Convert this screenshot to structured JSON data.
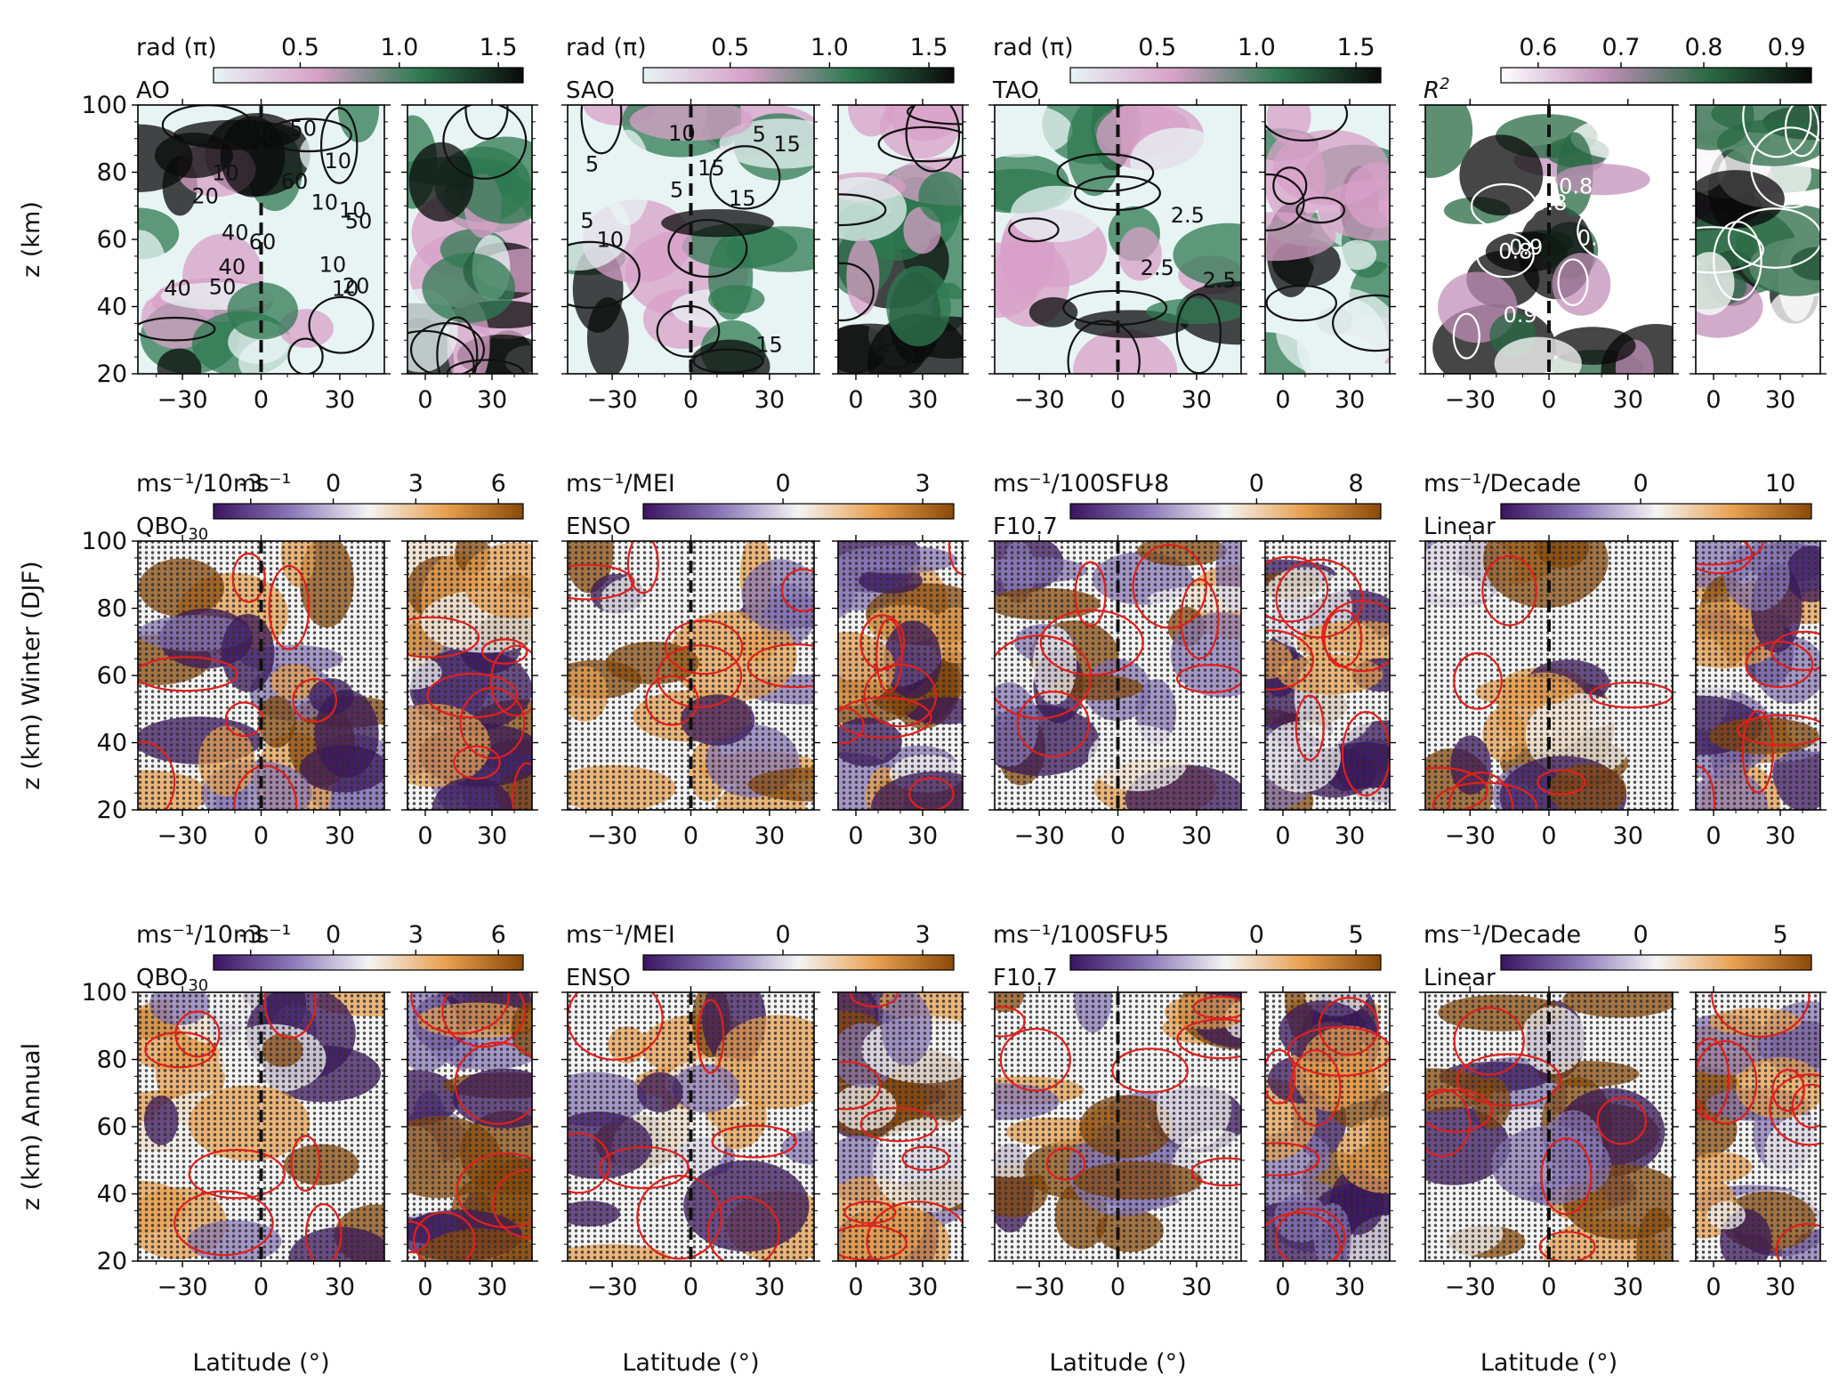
{
  "figure": {
    "y_axis_label_rows": [
      "z (km)",
      "z (km) Winter (DJF)",
      "z (km) Annual"
    ],
    "x_axis_label": "Latitude (°)"
  },
  "chart_data": {
    "type": "heatmap",
    "y_range": [
      20,
      100
    ],
    "y_ticks": [
      20,
      40,
      60,
      80,
      100
    ],
    "x_ticks_main": [
      -30,
      0,
      30
    ],
    "x_ticks_inset": [
      0,
      30
    ],
    "rows": [
      {
        "name": "phase_and_r2",
        "panels": [
          {
            "label": "AO",
            "units": "rad (π)",
            "cbar_ticks": [
              "0.5",
              "1.0",
              "1.5"
            ],
            "cmap": "phase",
            "contour_labels": [
              "10",
              "10",
              "60",
              "50",
              "40",
              "20",
              "40",
              "50",
              "10",
              "10",
              "20",
              "10",
              "10",
              "50",
              "40",
              "60"
            ]
          },
          {
            "label": "SAO",
            "units": "rad (π)",
            "cbar_ticks": [
              "0.5",
              "1.0",
              "1.5"
            ],
            "cmap": "phase",
            "contour_labels": [
              "5",
              "10",
              "15",
              "15",
              "5",
              "15",
              "10",
              "15",
              "5",
              "5"
            ]
          },
          {
            "label": "TAO",
            "units": "rad (π)",
            "cbar_ticks": [
              "0.5",
              "1.0",
              "1.5"
            ],
            "cmap": "phase",
            "contour_labels": [
              "2.5",
              "2.5",
              "2.5"
            ]
          },
          {
            "label": "R2",
            "units": "",
            "cbar_ticks": [
              "0.6",
              "0.7",
              "0.8",
              "0.9"
            ],
            "cmap": "r2",
            "contour_labels": [
              "0.9",
              "0.8",
              "0.8",
              "0.9",
              "0.8",
              "0.9",
              "0.8",
              "0.9"
            ]
          }
        ]
      },
      {
        "name": "winter_djf",
        "panels": [
          {
            "label": "QBO30",
            "units": "ms⁻¹/10ms⁻¹",
            "cbar_ticks": [
              "-3",
              "0",
              "3",
              "6"
            ],
            "cmap": "diverging"
          },
          {
            "label": "ENSO",
            "units": "ms⁻¹/MEI",
            "cbar_ticks": [
              "0",
              "3"
            ],
            "cmap": "diverging"
          },
          {
            "label": "F10.7",
            "units": "ms⁻¹/100SFU",
            "cbar_ticks": [
              "-8",
              "0",
              "8"
            ],
            "cmap": "diverging"
          },
          {
            "label": "Linear",
            "units": "ms⁻¹/Decade",
            "cbar_ticks": [
              "0",
              "10"
            ],
            "cmap": "diverging"
          }
        ]
      },
      {
        "name": "annual",
        "panels": [
          {
            "label": "QBO30",
            "units": "ms⁻¹/10ms⁻¹",
            "cbar_ticks": [
              "-3",
              "0",
              "3",
              "6"
            ],
            "cmap": "diverging"
          },
          {
            "label": "ENSO",
            "units": "ms⁻¹/MEI",
            "cbar_ticks": [
              "0",
              "3"
            ],
            "cmap": "diverging"
          },
          {
            "label": "F10.7",
            "units": "ms⁻¹/100SFU",
            "cbar_ticks": [
              "-5",
              "0",
              "5"
            ],
            "cmap": "diverging"
          },
          {
            "label": "Linear",
            "units": "ms⁻¹/Decade",
            "cbar_ticks": [
              "0",
              "5"
            ],
            "cmap": "diverging"
          }
        ]
      }
    ],
    "colors": {
      "phase": [
        "#e8f4f4",
        "#d8a0c8",
        "#2f7a52",
        "#0a0a0a"
      ],
      "r2": [
        "#ffffff",
        "#c090b8",
        "#2a6a44",
        "#080808"
      ],
      "diverging": [
        "#3b1460",
        "#8a78b8",
        "#f4f4f4",
        "#e8a050",
        "#8a4a08"
      ],
      "significance_contour": "#e0201c",
      "equator_line": "#111111"
    }
  }
}
